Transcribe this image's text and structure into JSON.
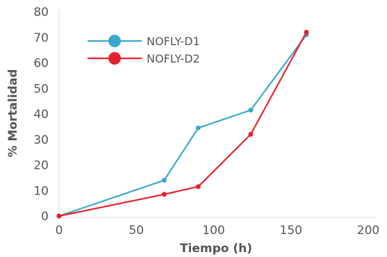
{
  "chart_data": {
    "type": "line",
    "title": "",
    "xlabel": "Tiempo (h)",
    "ylabel": "% Mortalidad",
    "xlim": [
      0,
      200
    ],
    "ylim": [
      0,
      80
    ],
    "xticks": [
      0,
      50,
      100,
      150,
      200
    ],
    "yticks": [
      0,
      10,
      20,
      30,
      40,
      50,
      60,
      70,
      80
    ],
    "grid": false,
    "legend_position": "top-left",
    "series": [
      {
        "name": "NOFLY-D1",
        "color": "#3aa8cc",
        "x": [
          0,
          68,
          90,
          124,
          160
        ],
        "y": [
          0,
          14,
          34.5,
          41.5,
          71
        ]
      },
      {
        "name": "NOFLY-D2",
        "color": "#e3232b",
        "x": [
          0,
          68,
          90,
          124,
          160
        ],
        "y": [
          0,
          8.5,
          11.5,
          32,
          72
        ]
      }
    ]
  }
}
